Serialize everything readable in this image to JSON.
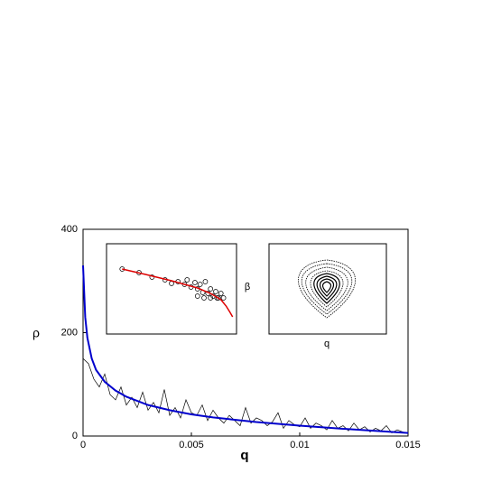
{
  "chart_data": [
    {
      "type": "line",
      "x_label": "q",
      "y_label": "ρ",
      "xlim": [
        0,
        0.015
      ],
      "ylim": [
        0,
        400
      ],
      "xticks": [
        0,
        0.005,
        0.01,
        0.015
      ],
      "yticks": [
        0,
        200,
        400
      ],
      "series": [
        {
          "color": "#000000",
          "x": [
            0,
            0.00025,
            0.0005,
            0.00075,
            0.001,
            0.00125,
            0.0015,
            0.00175,
            0.002,
            0.00225,
            0.0025,
            0.00275,
            0.003,
            0.00325,
            0.0035,
            0.00375,
            0.004,
            0.00425,
            0.0045,
            0.00475,
            0.005,
            0.00525,
            0.0055,
            0.00575,
            0.006,
            0.00625,
            0.0065,
            0.00675,
            0.007,
            0.00725,
            0.0075,
            0.00775,
            0.008,
            0.00825,
            0.0085,
            0.00875,
            0.009,
            0.00925,
            0.0095,
            0.00975,
            0.01,
            0.01025,
            0.0105,
            0.01075,
            0.011,
            0.01125,
            0.0115,
            0.01175,
            0.012,
            0.01225,
            0.0125,
            0.01275,
            0.013,
            0.01325,
            0.0135,
            0.01375,
            0.014,
            0.01425,
            0.0145,
            0.01475,
            0.015
          ],
          "values": [
            150,
            140,
            110,
            95,
            120,
            80,
            70,
            95,
            60,
            75,
            55,
            85,
            50,
            65,
            45,
            90,
            40,
            55,
            35,
            70,
            45,
            40,
            60,
            30,
            50,
            35,
            25,
            40,
            30,
            20,
            55,
            25,
            35,
            30,
            20,
            28,
            45,
            15,
            30,
            22,
            18,
            35,
            15,
            25,
            20,
            12,
            30,
            15,
            20,
            10,
            25,
            12,
            18,
            8,
            15,
            10,
            20,
            6,
            12,
            8,
            5
          ]
        },
        {
          "color": "#0000cc",
          "x": [
            0,
            0.0001,
            0.0002,
            0.0004,
            0.0006,
            0.001,
            0.0015,
            0.002,
            0.003,
            0.004,
            0.005,
            0.006,
            0.008,
            0.01,
            0.012,
            0.015
          ],
          "values": [
            330,
            230,
            190,
            150,
            128,
            105,
            88,
            76,
            60,
            50,
            42,
            36,
            27,
            20,
            14,
            6
          ]
        }
      ]
    },
    {
      "type": "scatter-fit",
      "xlim": [
        0,
        1
      ],
      "ylim": [
        0,
        1
      ],
      "points": {
        "x": [
          0.12,
          0.25,
          0.35,
          0.45,
          0.5,
          0.55,
          0.6,
          0.62,
          0.65,
          0.68,
          0.7,
          0.72,
          0.74,
          0.76,
          0.78,
          0.8,
          0.82,
          0.84,
          0.86,
          0.88,
          0.7,
          0.75,
          0.8,
          0.85,
          0.9
        ],
        "values": [
          0.72,
          0.68,
          0.63,
          0.6,
          0.56,
          0.58,
          0.55,
          0.6,
          0.52,
          0.57,
          0.5,
          0.55,
          0.46,
          0.58,
          0.45,
          0.5,
          0.42,
          0.47,
          0.4,
          0.45,
          0.42,
          0.4,
          0.4,
          0.4,
          0.4
        ]
      },
      "fit": {
        "color": "#dd0000",
        "x": [
          0.12,
          0.3,
          0.5,
          0.7,
          0.8,
          0.88,
          0.92,
          0.95,
          0.97
        ],
        "values": [
          0.72,
          0.66,
          0.59,
          0.51,
          0.45,
          0.38,
          0.31,
          0.24,
          0.19
        ]
      }
    },
    {
      "type": "phase",
      "x_label": "q",
      "y_label": "β"
    }
  ]
}
